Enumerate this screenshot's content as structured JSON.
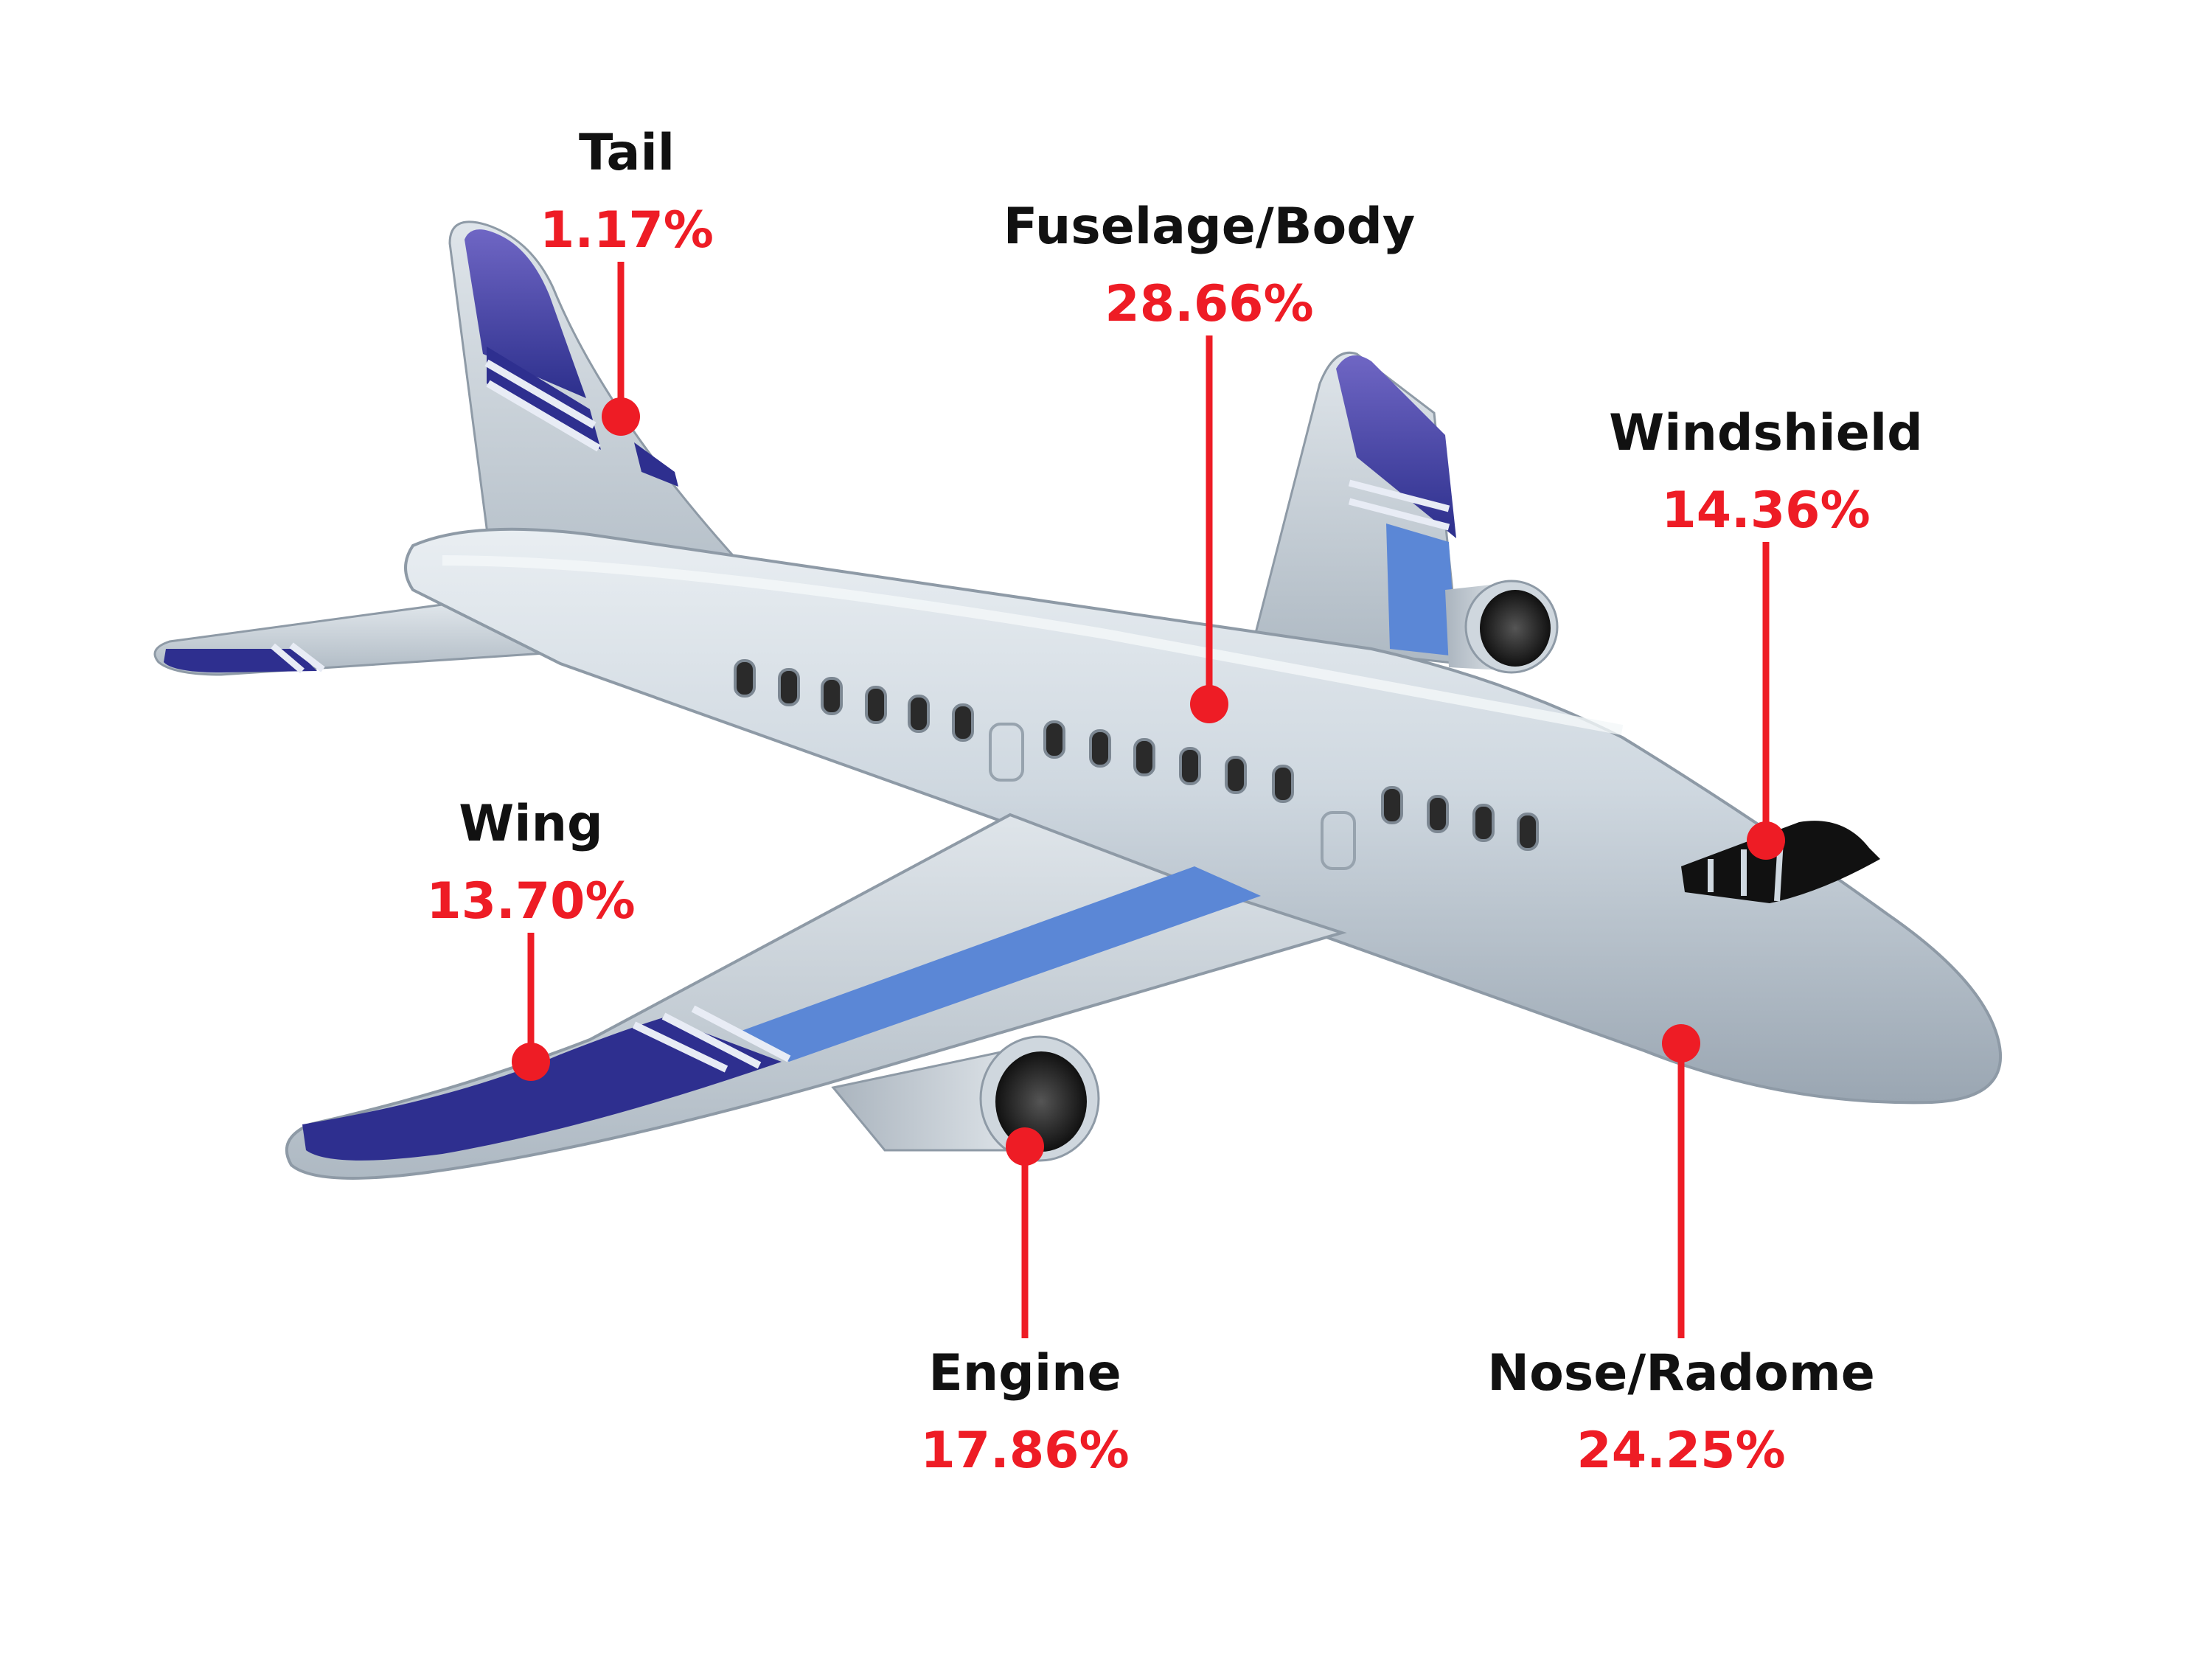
{
  "colors": {
    "accent_red": "#ee1c25",
    "label_black": "#111111",
    "fuselage_gray": "#cdd6de",
    "stripe_navy": "#2e2f8f",
    "stripe_blue": "#5b87d6"
  },
  "callouts": [
    {
      "id": "tail",
      "name": "Tail",
      "value": "1.17%",
      "percent": 1.17
    },
    {
      "id": "fuselage",
      "name": "Fuselage/Body",
      "value": "28.66%",
      "percent": 28.66
    },
    {
      "id": "windshield",
      "name": "Windshield",
      "value": "14.36%",
      "percent": 14.36
    },
    {
      "id": "wing",
      "name": "Wing",
      "value": "13.70%",
      "percent": 13.7
    },
    {
      "id": "engine",
      "name": "Engine",
      "value": "17.86%",
      "percent": 17.86
    },
    {
      "id": "nose",
      "name": "Nose/Radome",
      "value": "24.25%",
      "percent": 24.25
    }
  ]
}
